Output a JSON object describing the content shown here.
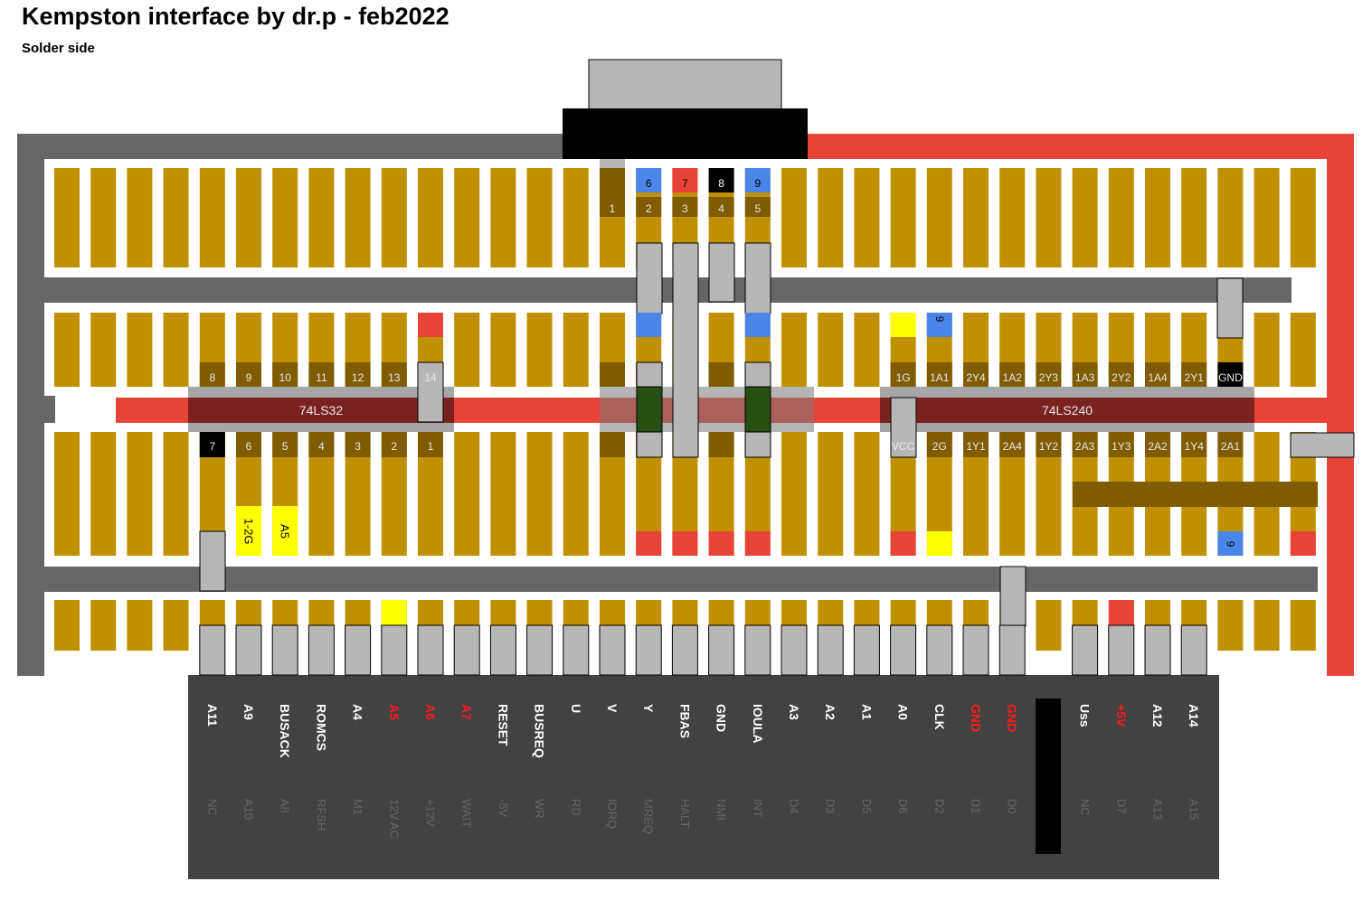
{
  "title": "Kempston interface by dr.p - feb2022",
  "subtitle": "Solder side",
  "colors": {
    "strip": "#c09000",
    "strip_dark": "#7f5c00",
    "wire_gray": "#b7b7b7",
    "bus_gray": "#666666",
    "bus_red": "#e84338",
    "chip": "#7a221f",
    "connector": "#424242",
    "blue": "#4a86e8",
    "yellow": "#ffff00",
    "black": "#000000",
    "cap": "#274e13"
  },
  "db9": {
    "top_pins": [
      {
        "num": "1",
        "marker": ""
      },
      {
        "num": "2",
        "marker": "6"
      },
      {
        "num": "3",
        "marker": "7"
      },
      {
        "num": "4",
        "marker": "8"
      },
      {
        "num": "5",
        "marker": "9"
      }
    ]
  },
  "chips": {
    "ls32": {
      "name": "74LS32",
      "top_pins": [
        "8",
        "9",
        "10",
        "11",
        "12",
        "13",
        "14"
      ],
      "bottom_pins": [
        "7",
        "6",
        "5",
        "4",
        "3",
        "2",
        "1"
      ]
    },
    "ls240": {
      "name": "74LS240",
      "top_pins": [
        "1G",
        "1A1",
        "2Y4",
        "1A2",
        "2Y3",
        "1A3",
        "2Y2",
        "1A4",
        "2Y1",
        "GND"
      ],
      "bottom_pins": [
        "VCC",
        "2G",
        "1Y1",
        "2A4",
        "1Y2",
        "2A3",
        "1Y3",
        "2A2",
        "1Y4",
        "2A1"
      ]
    }
  },
  "markers": {
    "row2_pin9": "9",
    "row3_1_2g": "1-2G",
    "row3_a5": "A5",
    "row3_pin9": "9"
  },
  "edge_connector": {
    "top_labels": [
      {
        "text": "A11",
        "red": false
      },
      {
        "text": "A9",
        "red": false
      },
      {
        "text": "BUSACK",
        "red": false
      },
      {
        "text": "ROMCS",
        "red": false
      },
      {
        "text": "A4",
        "red": false
      },
      {
        "text": "A5",
        "red": true
      },
      {
        "text": "A6",
        "red": true
      },
      {
        "text": "A7",
        "red": true
      },
      {
        "text": "RESET",
        "red": false
      },
      {
        "text": "BUSREQ",
        "red": false
      },
      {
        "text": "U",
        "red": false
      },
      {
        "text": "V",
        "red": false
      },
      {
        "text": "Y",
        "red": false
      },
      {
        "text": "FBAS",
        "red": false
      },
      {
        "text": "GND",
        "red": false
      },
      {
        "text": "IOULA",
        "red": false
      },
      {
        "text": "A3",
        "red": false
      },
      {
        "text": "A2",
        "red": false
      },
      {
        "text": "A1",
        "red": false
      },
      {
        "text": "A0",
        "red": false
      },
      {
        "text": "CLK",
        "red": false
      },
      {
        "text": "GND",
        "red": true
      },
      {
        "text": "GND",
        "red": true
      },
      {
        "text": "",
        "red": false
      },
      {
        "text": "Uss",
        "red": false
      },
      {
        "text": "+5V",
        "red": true
      },
      {
        "text": "A12",
        "red": false
      },
      {
        "text": "A14",
        "red": false
      }
    ],
    "bottom_labels": [
      "NC",
      "A10",
      "A8",
      "RFSH",
      "M1",
      "12V AC",
      "+12V",
      "WAIT",
      "-5V",
      "WR",
      "RD",
      "IORQ",
      "MREQ",
      "HALT",
      "NMI",
      "INT",
      "D4",
      "D3",
      "D5",
      "D6",
      "D2",
      "D1",
      "D0",
      "",
      "NC",
      "D7",
      "A13",
      "A15"
    ]
  }
}
